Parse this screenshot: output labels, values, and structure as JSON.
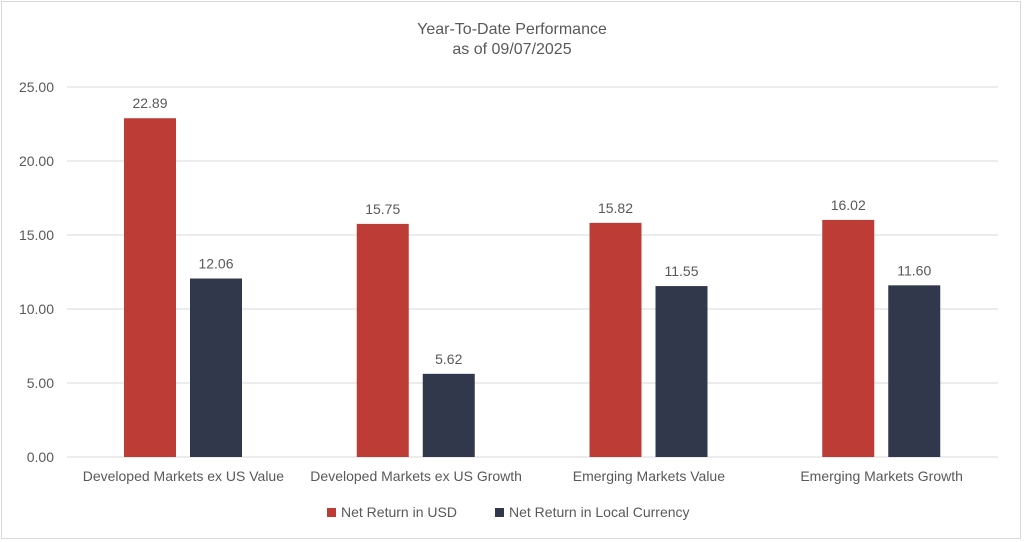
{
  "chart_data": {
    "type": "bar",
    "title": "Year-To-Date Performance",
    "subtitle": "as of 09/07/2025",
    "categories": [
      "Developed Markets ex US Value",
      "Developed Markets ex US Growth",
      "Emerging Markets Value",
      "Emerging Markets Growth"
    ],
    "series": [
      {
        "name": "Net Return in USD",
        "color": "#BE3C36",
        "values": [
          22.89,
          15.75,
          15.82,
          16.02
        ],
        "labels": [
          "22.89",
          "15.75",
          "15.82",
          "16.02"
        ]
      },
      {
        "name": "Net Return in Local Currency",
        "color": "#32384C",
        "values": [
          12.06,
          5.62,
          11.55,
          11.6
        ],
        "labels": [
          "12.06",
          "5.62",
          "11.55",
          "11.60"
        ]
      }
    ],
    "yticks": [
      "0.00",
      "5.00",
      "10.00",
      "15.00",
      "20.00",
      "25.00"
    ],
    "ylim": [
      0,
      25
    ],
    "xlabel": "",
    "ylabel": "",
    "grid": true,
    "legend": "bottom"
  }
}
